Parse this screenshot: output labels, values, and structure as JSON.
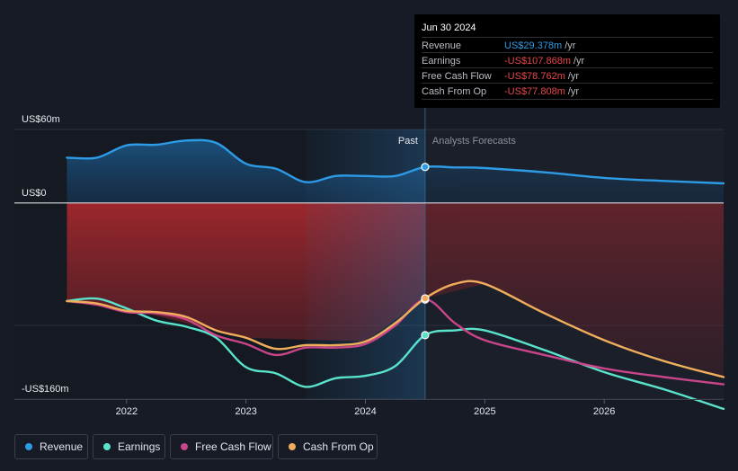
{
  "chart_data": {
    "type": "area-line",
    "y_labels": [
      "US$60m",
      "US$0",
      "-US$160m"
    ],
    "ylim": [
      -160,
      60
    ],
    "x_ticks": [
      "2022",
      "2023",
      "2024",
      "2025",
      "2026"
    ],
    "past_label": "Past",
    "forecast_label": "Analysts Forecasts",
    "series": [
      {
        "name": "Revenue",
        "color": "#2d9be5",
        "points": [
          [
            2021.5,
            37
          ],
          [
            2021.75,
            37
          ],
          [
            2022.0,
            47
          ],
          [
            2022.25,
            47.5
          ],
          [
            2022.5,
            51
          ],
          [
            2022.75,
            49
          ],
          [
            2023.0,
            32
          ],
          [
            2023.25,
            28
          ],
          [
            2023.5,
            17
          ],
          [
            2023.75,
            22
          ],
          [
            2024.0,
            22
          ],
          [
            2024.25,
            22
          ],
          [
            2024.5,
            29.378
          ],
          [
            2024.75,
            29
          ],
          [
            2025.0,
            28.5
          ],
          [
            2025.5,
            25
          ],
          [
            2026.0,
            20.5
          ],
          [
            2026.5,
            18
          ],
          [
            2027.0,
            16
          ]
        ]
      },
      {
        "name": "Earnings",
        "color": "#5ae3cb",
        "points": [
          [
            2021.5,
            -80
          ],
          [
            2021.75,
            -78
          ],
          [
            2022.0,
            -86
          ],
          [
            2022.25,
            -96
          ],
          [
            2022.5,
            -101
          ],
          [
            2022.75,
            -110
          ],
          [
            2023.0,
            -134
          ],
          [
            2023.25,
            -139
          ],
          [
            2023.5,
            -150
          ],
          [
            2023.75,
            -143
          ],
          [
            2024.0,
            -141
          ],
          [
            2024.25,
            -133
          ],
          [
            2024.5,
            -107.868
          ],
          [
            2024.75,
            -104
          ],
          [
            2025.0,
            -104
          ],
          [
            2025.5,
            -120
          ],
          [
            2026.0,
            -138
          ],
          [
            2026.5,
            -152
          ],
          [
            2027.0,
            -168
          ]
        ]
      },
      {
        "name": "Free Cash Flow",
        "color": "#c94589",
        "points": [
          [
            2021.5,
            -80
          ],
          [
            2021.75,
            -83
          ],
          [
            2022.0,
            -89
          ],
          [
            2022.25,
            -90
          ],
          [
            2022.5,
            -95
          ],
          [
            2022.75,
            -108
          ],
          [
            2023.0,
            -115
          ],
          [
            2023.25,
            -124
          ],
          [
            2023.5,
            -118
          ],
          [
            2023.75,
            -118
          ],
          [
            2024.0,
            -115
          ],
          [
            2024.25,
            -100
          ],
          [
            2024.5,
            -78.762
          ],
          [
            2024.75,
            -98
          ],
          [
            2025.0,
            -112
          ],
          [
            2025.5,
            -124
          ],
          [
            2026.0,
            -135
          ],
          [
            2026.5,
            -142
          ],
          [
            2027.0,
            -148
          ]
        ]
      },
      {
        "name": "Cash From Op",
        "color": "#f0ad5b",
        "points": [
          [
            2021.5,
            -80
          ],
          [
            2021.75,
            -82
          ],
          [
            2022.0,
            -88
          ],
          [
            2022.25,
            -89
          ],
          [
            2022.5,
            -93
          ],
          [
            2022.75,
            -104
          ],
          [
            2023.0,
            -110
          ],
          [
            2023.25,
            -119
          ],
          [
            2023.5,
            -116
          ],
          [
            2023.75,
            -116
          ],
          [
            2024.0,
            -113
          ],
          [
            2024.25,
            -98
          ],
          [
            2024.5,
            -77.808
          ],
          [
            2024.75,
            -66
          ],
          [
            2025.0,
            -66
          ],
          [
            2025.5,
            -90
          ],
          [
            2026.0,
            -112
          ],
          [
            2026.5,
            -129
          ],
          [
            2027.0,
            -142
          ]
        ]
      }
    ]
  },
  "tooltip": {
    "date": "Jun 30 2024",
    "rows": [
      {
        "label": "Revenue",
        "value": "US$29.378m",
        "unit": "/yr",
        "color": "#2d9be5"
      },
      {
        "label": "Earnings",
        "value": "-US$107.868m",
        "unit": "/yr",
        "color": "#e6474a"
      },
      {
        "label": "Free Cash Flow",
        "value": "-US$78.762m",
        "unit": "/yr",
        "color": "#e6474a"
      },
      {
        "label": "Cash From Op",
        "value": "-US$77.808m",
        "unit": "/yr",
        "color": "#e6474a"
      }
    ]
  },
  "legend": [
    {
      "label": "Revenue",
      "color": "#2d9be5"
    },
    {
      "label": "Earnings",
      "color": "#5ae3cb"
    },
    {
      "label": "Free Cash Flow",
      "color": "#c94589"
    },
    {
      "label": "Cash From Op",
      "color": "#f0ad5b"
    }
  ]
}
